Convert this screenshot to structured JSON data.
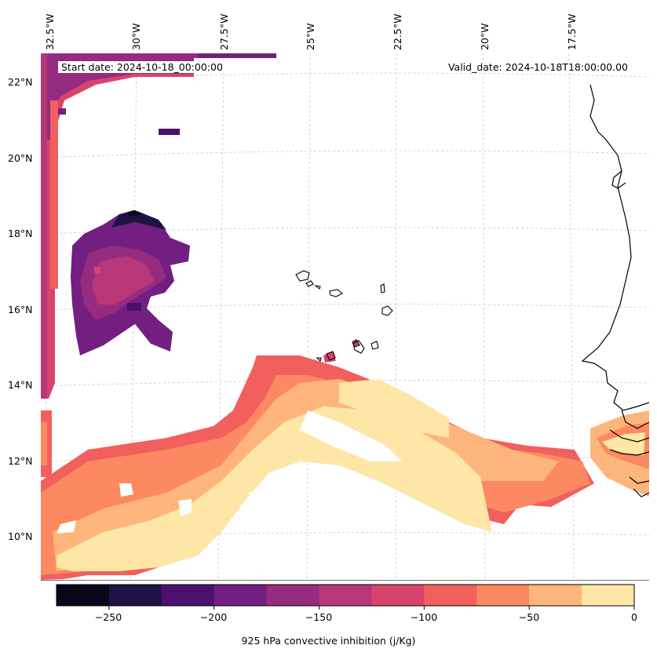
{
  "map": {
    "start_date": "Start date: 2024-10-18_00:00:00",
    "valid_date": "Valid_date: 2024-10-18T18:00:00.00",
    "variable": "925 hPa convective inhibition (j/Kg)",
    "lon_labels": [
      "32.5°W",
      "30°W",
      "27.5°W",
      "25°W",
      "22.5°W",
      "20°W",
      "17.5°W"
    ],
    "lat_labels": [
      "22°N",
      "20°N",
      "18°N",
      "16°N",
      "14°N",
      "12°N",
      "10°N"
    ],
    "gridlines": "on",
    "colormap": "magma"
  },
  "colorbar": {
    "ticks": [
      "−250",
      "−200",
      "−150",
      "−100",
      "−50",
      "0"
    ],
    "levels": [
      -275,
      -250,
      -225,
      -200,
      -175,
      -150,
      -125,
      -100,
      -75,
      -50,
      -25,
      0
    ],
    "colors": [
      "#07061a",
      "#1f1244",
      "#4b0f6e",
      "#721f81",
      "#962c80",
      "#b73779",
      "#d8456c",
      "#f1605d",
      "#fc8961",
      "#feb57c",
      "#fde6a6"
    ]
  }
}
